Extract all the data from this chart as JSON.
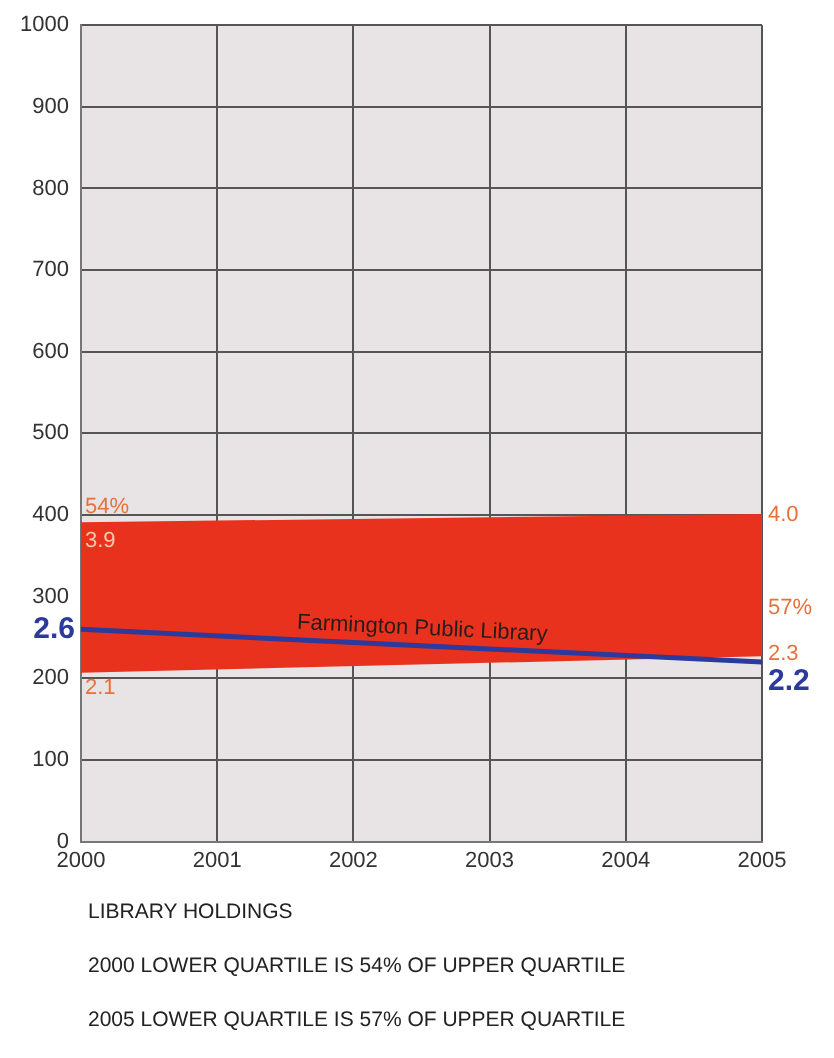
{
  "chart_data": {
    "type": "line",
    "title": "LIBRARY HOLDINGS",
    "x": [
      2000,
      2005
    ],
    "series": [
      {
        "color": "#e8321e",
        "values": [
          210,
          230
        ]
      },
      {
        "type": "area",
        "color": "#e8321e",
        "values": [
          390,
          400
        ]
      },
      {
        "name": "Farmington Public Library",
        "color": "#2b3a9c",
        "values": [
          260,
          220
        ]
      }
    ],
    "xlim": [
      2000,
      2005
    ],
    "xticks": [
      2000,
      2001,
      2002,
      2003,
      2004,
      2005
    ],
    "ylim": [
      0,
      1000
    ],
    "yticks": [
      0,
      100,
      200,
      300,
      400,
      500,
      600,
      700,
      800,
      900,
      1000
    ],
    "tick_labels": "xy",
    "grid": true,
    "legend": false,
    "marker": "none",
    "annotations": [
      "54%",
      "3.9",
      "2.1",
      "4.0",
      "57%",
      "2.3",
      "2.6",
      "2.2",
      "2000 LOWER QUARTILE IS 54% OF UPPER QUARTILE",
      "2005 LOWER QUARTILE IS 57% OF UPPER QUARTILE"
    ]
  }
}
